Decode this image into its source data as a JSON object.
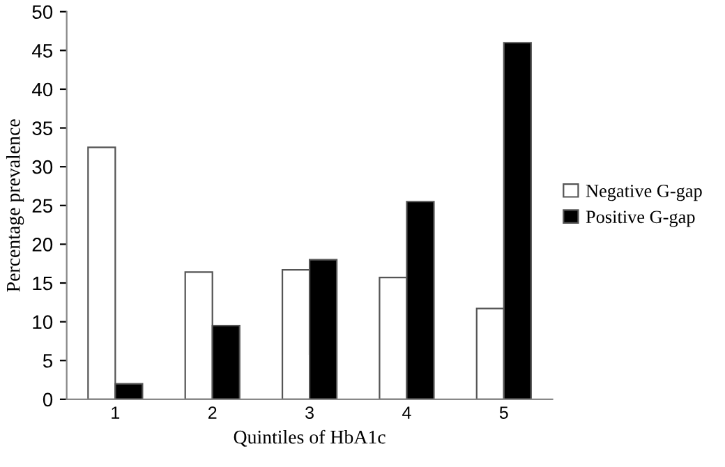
{
  "chart_data": {
    "type": "bar",
    "xlabel": "Quintiles of HbA1c",
    "ylabel": "Percentage prevalence",
    "categories": [
      "1",
      "2",
      "3",
      "4",
      "5"
    ],
    "series": [
      {
        "name": "Negative G-gap",
        "color": "#ffffff",
        "values": [
          32.5,
          16.4,
          16.7,
          15.7,
          11.7
        ]
      },
      {
        "name": "Positive G-gap",
        "color": "#000000",
        "values": [
          2,
          9.5,
          18,
          25.5,
          46
        ]
      }
    ],
    "ylim": [
      0,
      50
    ],
    "yticks": [
      0,
      5,
      10,
      15,
      20,
      25,
      30,
      35,
      40,
      45,
      50
    ],
    "grid": false,
    "legend": "right"
  }
}
